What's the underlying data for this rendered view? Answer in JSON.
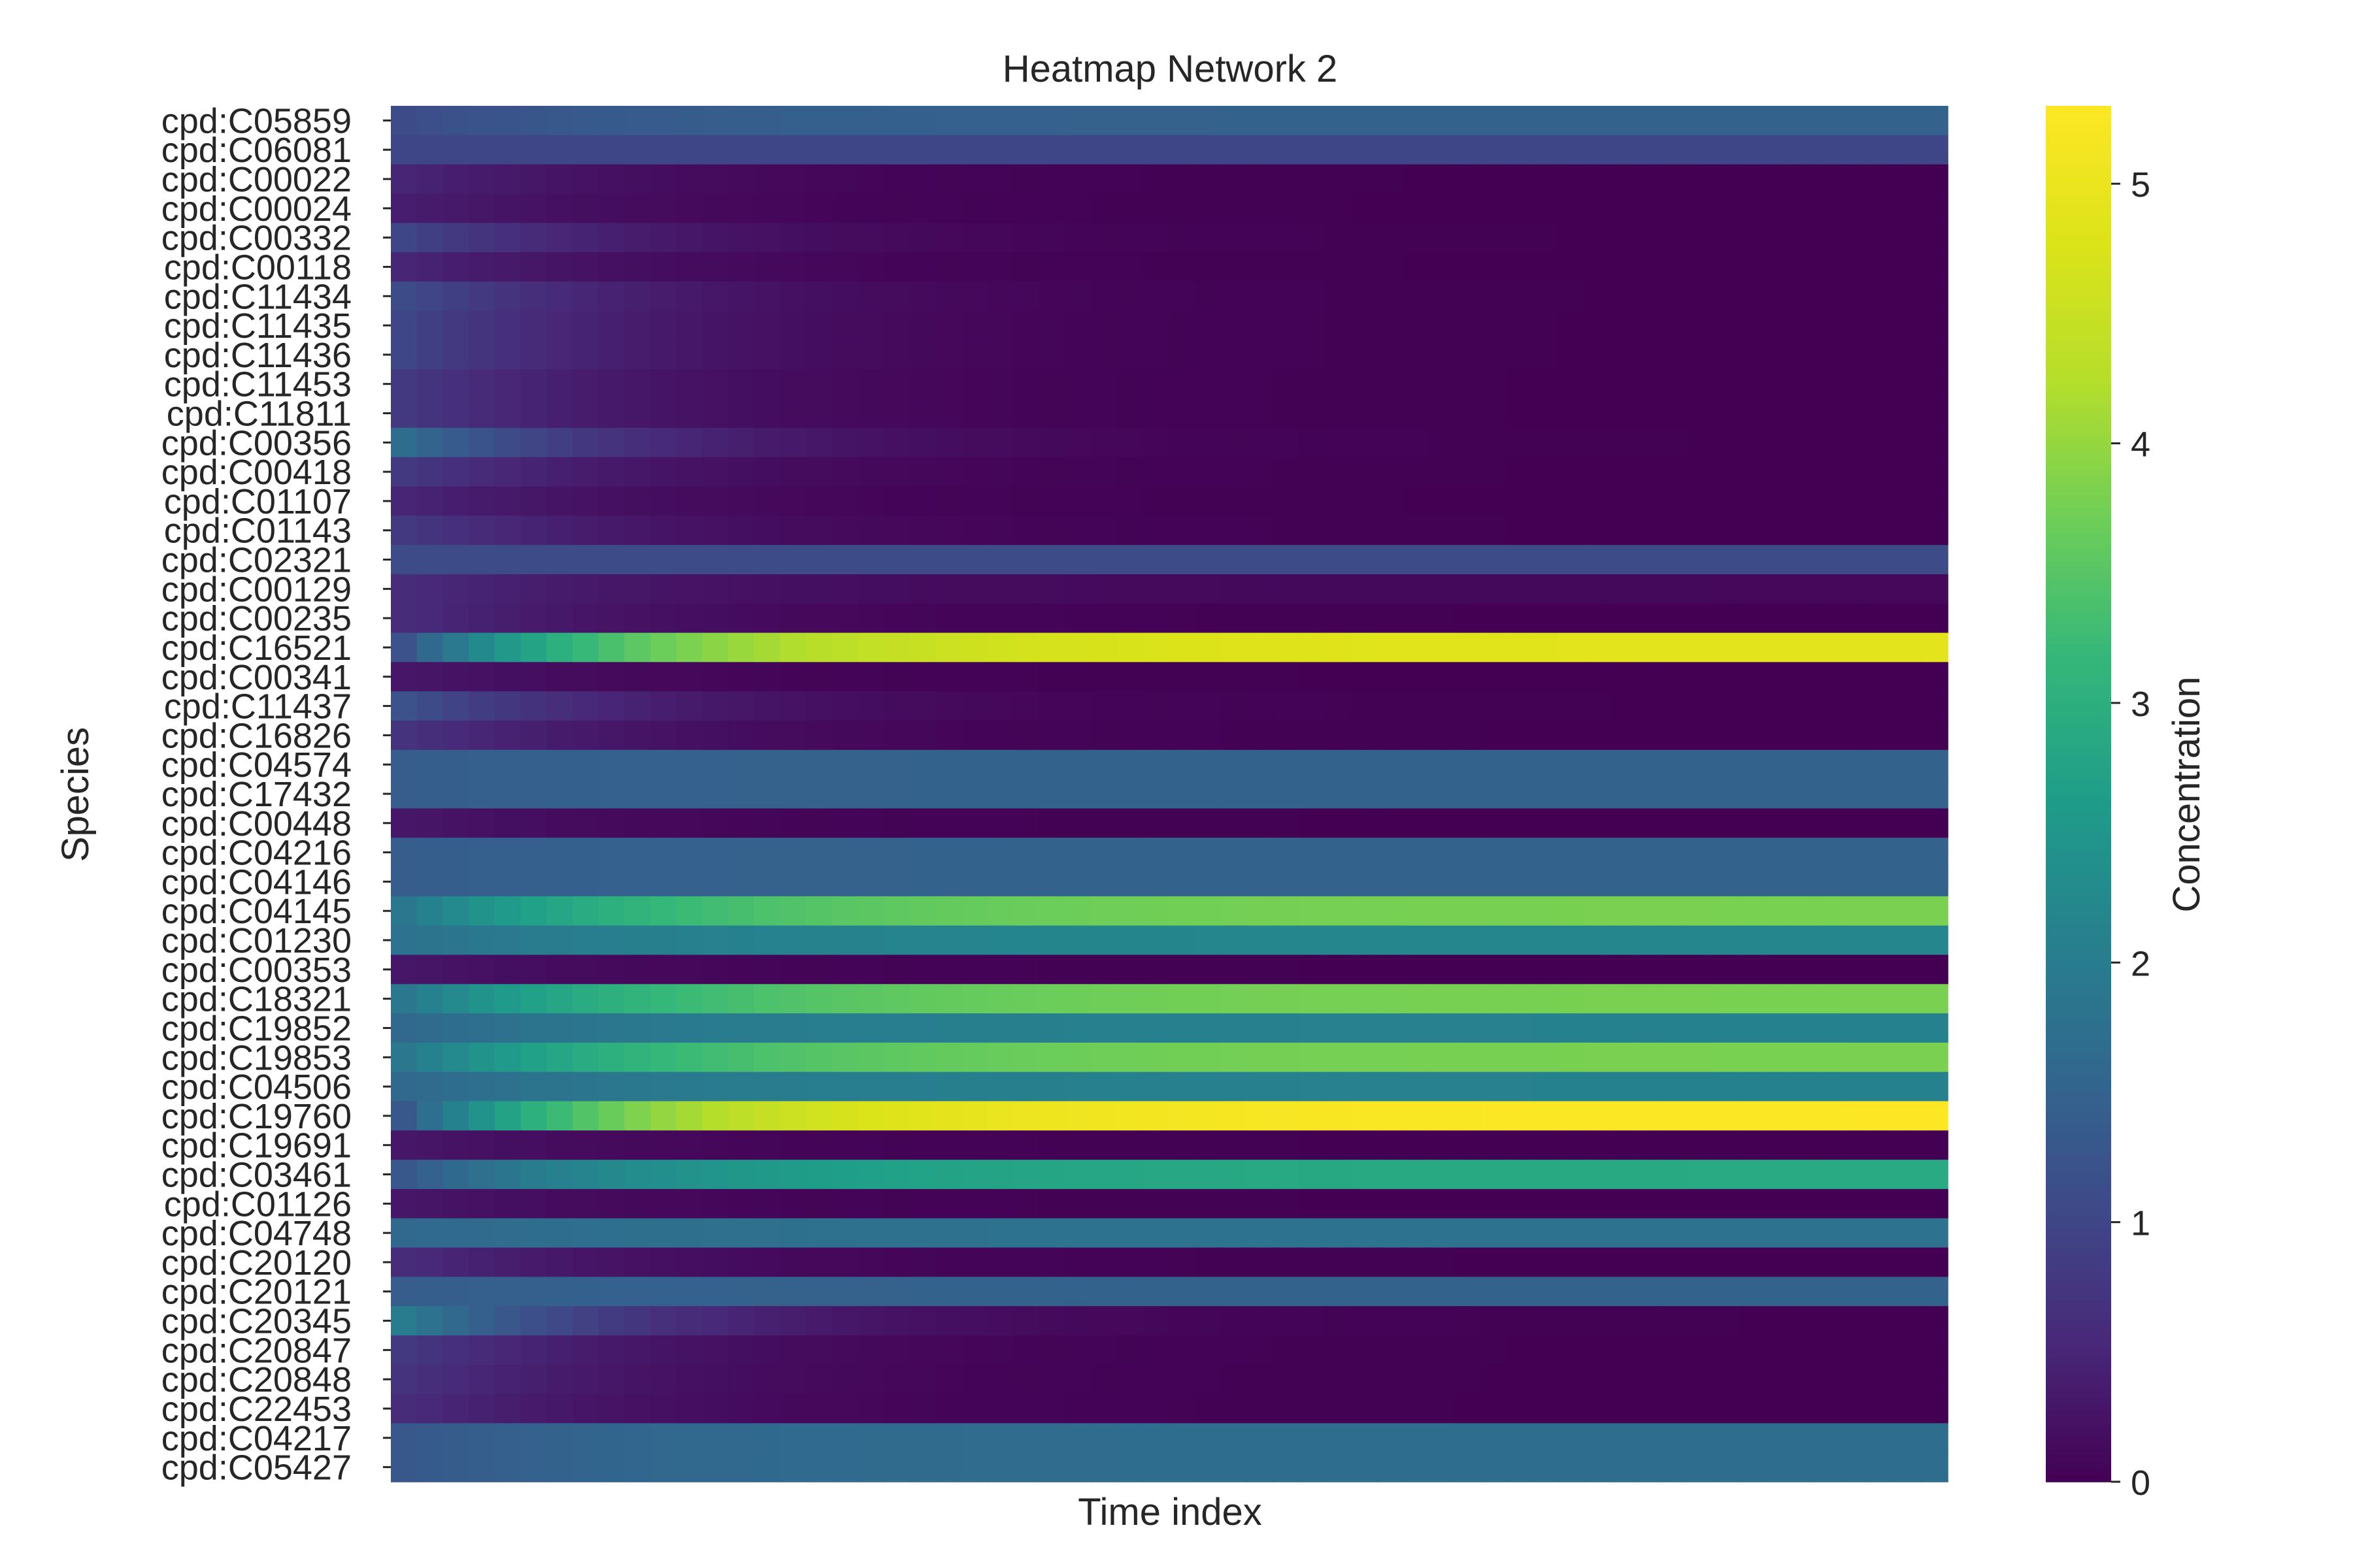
{
  "chart_data": {
    "type": "heatmap",
    "title": "Heatmap Network 2",
    "xlabel": "Time index",
    "ylabel": "Species",
    "colorbar": {
      "label": "Concentration",
      "ticks": [
        0,
        1,
        2,
        3,
        4,
        5
      ],
      "range": [
        0,
        5.3
      ],
      "colormap": "viridis"
    },
    "x_ticks_shown": false,
    "time_points": 60,
    "rows": [
      {
        "name": "cpd:C05859",
        "start": 1.1,
        "end": 1.5
      },
      {
        "name": "cpd:C06081",
        "start": 1.0,
        "end": 1.0
      },
      {
        "name": "cpd:C00022",
        "start": 0.5,
        "end": 0.0
      },
      {
        "name": "cpd:C00024",
        "start": 0.4,
        "end": 0.0
      },
      {
        "name": "cpd:C00332",
        "start": 1.0,
        "end": 0.0
      },
      {
        "name": "cpd:C00118",
        "start": 0.5,
        "end": 0.0
      },
      {
        "name": "cpd:C11434",
        "start": 1.1,
        "end": 0.0
      },
      {
        "name": "cpd:C11435",
        "start": 1.0,
        "end": 0.0
      },
      {
        "name": "cpd:C11436",
        "start": 1.0,
        "end": 0.0
      },
      {
        "name": "cpd:C11453",
        "start": 0.8,
        "end": 0.0
      },
      {
        "name": "cpd:C11811",
        "start": 0.8,
        "end": 0.0
      },
      {
        "name": "cpd:C00356",
        "start": 1.7,
        "end": 0.0
      },
      {
        "name": "cpd:C00418",
        "start": 0.8,
        "end": 0.0
      },
      {
        "name": "cpd:C01107",
        "start": 0.5,
        "end": 0.0
      },
      {
        "name": "cpd:C01143",
        "start": 0.8,
        "end": 0.0
      },
      {
        "name": "cpd:C02321",
        "start": 1.1,
        "end": 1.1
      },
      {
        "name": "cpd:C00129",
        "start": 0.6,
        "end": 0.1
      },
      {
        "name": "cpd:C00235",
        "start": 0.6,
        "end": 0.0
      },
      {
        "name": "cpd:C16521",
        "start": 1.2,
        "end": 4.9
      },
      {
        "name": "cpd:C00341",
        "start": 0.3,
        "end": 0.0
      },
      {
        "name": "cpd:C11437",
        "start": 1.2,
        "end": 0.0
      },
      {
        "name": "cpd:C16826",
        "start": 0.7,
        "end": 0.0
      },
      {
        "name": "cpd:C04574",
        "start": 1.4,
        "end": 1.5
      },
      {
        "name": "cpd:C17432",
        "start": 1.4,
        "end": 1.5
      },
      {
        "name": "cpd:C00448",
        "start": 0.3,
        "end": 0.0
      },
      {
        "name": "cpd:C04216",
        "start": 1.4,
        "end": 1.5
      },
      {
        "name": "cpd:C04146",
        "start": 1.4,
        "end": 1.5
      },
      {
        "name": "cpd:C04145",
        "start": 1.9,
        "end": 3.8
      },
      {
        "name": "cpd:C01230",
        "start": 1.8,
        "end": 2.2
      },
      {
        "name": "cpd:C00353",
        "start": 0.3,
        "end": 0.0
      },
      {
        "name": "cpd:C18321",
        "start": 1.9,
        "end": 3.8
      },
      {
        "name": "cpd:C19852",
        "start": 1.6,
        "end": 2.1
      },
      {
        "name": "cpd:C19853",
        "start": 1.9,
        "end": 3.8
      },
      {
        "name": "cpd:C04506",
        "start": 1.6,
        "end": 2.1
      },
      {
        "name": "cpd:C19760",
        "start": 1.3,
        "end": 5.3
      },
      {
        "name": "cpd:C19691",
        "start": 0.3,
        "end": 0.0
      },
      {
        "name": "cpd:C03461",
        "start": 1.3,
        "end": 2.9
      },
      {
        "name": "cpd:C01126",
        "start": 0.3,
        "end": 0.0
      },
      {
        "name": "cpd:C04748",
        "start": 1.6,
        "end": 1.8
      },
      {
        "name": "cpd:C20120",
        "start": 0.6,
        "end": 0.0
      },
      {
        "name": "cpd:C20121",
        "start": 1.4,
        "end": 1.5
      },
      {
        "name": "cpd:C20345",
        "start": 2.0,
        "end": 0.0
      },
      {
        "name": "cpd:C20847",
        "start": 0.8,
        "end": 0.0
      },
      {
        "name": "cpd:C20848",
        "start": 0.7,
        "end": 0.0
      },
      {
        "name": "cpd:C22453",
        "start": 0.6,
        "end": 0.0
      },
      {
        "name": "cpd:C04217",
        "start": 1.3,
        "end": 1.7
      },
      {
        "name": "cpd:C05427",
        "start": 1.3,
        "end": 1.7
      }
    ]
  }
}
